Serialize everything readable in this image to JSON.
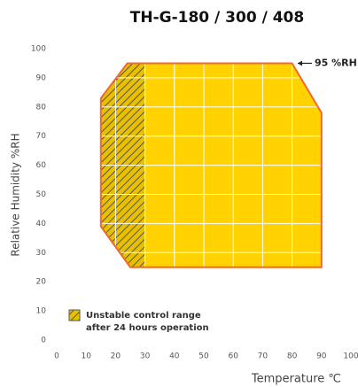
{
  "chart_data": {
    "type": "polygon",
    "title": "TH-G-180 / 300 / 408",
    "x_label": "Temperature ℃",
    "y_label": "Relative Humidity %RH",
    "x": [
      15,
      15,
      24,
      80,
      90,
      90,
      25
    ],
    "values": [
      39,
      83,
      95,
      95,
      78,
      25,
      25
    ],
    "color": "#ffd200",
    "edge_color": "#ef6a2c",
    "hatch": {
      "x_range": [
        15,
        30
      ],
      "label_lines": [
        "Unstable control range",
        "after 24 hours operation"
      ]
    },
    "annotations": [
      {
        "text": "95 %RH",
        "y": 95
      }
    ],
    "xlim": [
      0,
      100
    ],
    "xticks": [
      0,
      10,
      20,
      30,
      40,
      50,
      60,
      70,
      80,
      90,
      100
    ],
    "ylim": [
      0,
      100
    ],
    "yticks": [
      0,
      10,
      20,
      30,
      40,
      50,
      60,
      70,
      80,
      90,
      100
    ],
    "grid": true
  }
}
